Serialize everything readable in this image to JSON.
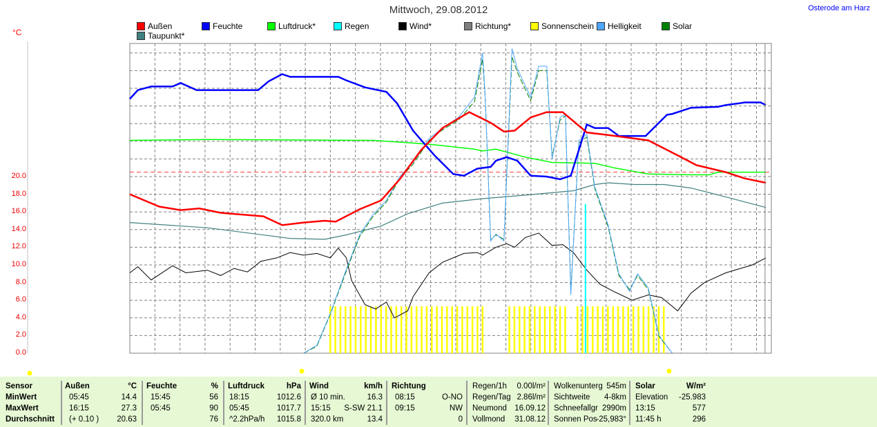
{
  "title": "Mittwoch, 29.08.2012",
  "location": "Osterode am Harz",
  "unit": "°C",
  "legend": [
    {
      "label": "Außen",
      "color": "#ff0000"
    },
    {
      "label": "Feuchte",
      "color": "#0000ff"
    },
    {
      "label": "Luftdruck*",
      "color": "#00ff00"
    },
    {
      "label": "Regen",
      "color": "#00ffff"
    },
    {
      "label": "Wind*",
      "color": "#000000"
    },
    {
      "label": "Richtung*",
      "color": "#808080"
    },
    {
      "label": "Sonnenschein",
      "color": "#ffff00"
    },
    {
      "label": "Helligkeit",
      "color": "#4da6ff"
    },
    {
      "label": "Solar",
      "color": "#008000"
    },
    {
      "label": "Taupunkt*",
      "color": "#408080"
    }
  ],
  "chart_data": {
    "type": "line",
    "title": "Mittwoch, 29.08.2012",
    "ylabel": "°C",
    "xlim": [
      0,
      24
    ],
    "ylim": [
      0,
      35
    ],
    "yticks": [
      "0.0",
      "2.0",
      "4.0",
      "6.0",
      "8.0",
      "10.0",
      "12.0",
      "14.0",
      "16.0",
      "18.0",
      "20.0"
    ],
    "reference_line": 20.5,
    "current_time": 23.77,
    "rain_spike": {
      "x": 17.05,
      "y": 16.9
    },
    "sunshine_ranges": [
      [
        7.5,
        13.3
      ],
      [
        14.2,
        16.3
      ],
      [
        16.75,
        20.1
      ]
    ],
    "series": [
      {
        "name": "Außen",
        "color": "#ff0000",
        "width": 2.5,
        "x": [
          0,
          1.1,
          1.9,
          2.6,
          3.4,
          5,
          5.7,
          6.5,
          7.3,
          7.7,
          8.6,
          9.4,
          10.1,
          10.9,
          11.7,
          12.7,
          13.5,
          14,
          14.4,
          15,
          15.6,
          16.2,
          17.1,
          17.9,
          19.4,
          20.5,
          21.2,
          22.3,
          23,
          23.8
        ],
        "y": [
          18,
          16.6,
          16.2,
          16.4,
          15.9,
          15.5,
          14.5,
          14.8,
          15,
          14.9,
          16.3,
          17.3,
          19.7,
          23,
          25.5,
          27.3,
          26.1,
          25.1,
          25.2,
          26.7,
          27.3,
          27.3,
          25,
          24.7,
          24.1,
          22.4,
          21.3,
          20.5,
          19.8,
          19.3
        ]
      },
      {
        "name": "Feuchte",
        "color": "#0000ff",
        "width": 2.5,
        "x": [
          0,
          0.3,
          0.8,
          1.6,
          1.9,
          2.5,
          4.8,
          5.2,
          5.7,
          6,
          7.8,
          8.1,
          8.8,
          9.6,
          10,
          10.6,
          11.4,
          12.1,
          12.5,
          13,
          13.5,
          13.7,
          14.1,
          14.5,
          15,
          15.6,
          16.1,
          16.5,
          17.1,
          17.4,
          17.9,
          18.3,
          19.3,
          20.1,
          20.3,
          21,
          22,
          22.3,
          22.8,
          23,
          23.6,
          23.8
        ],
        "y": [
          28.8,
          29.8,
          30.2,
          30.2,
          30.6,
          29.8,
          29.8,
          30.8,
          31.6,
          31.3,
          31.3,
          30.9,
          30.1,
          29.6,
          28.3,
          25.2,
          22.4,
          20.3,
          20.1,
          20.9,
          21.1,
          21.8,
          22.2,
          21.8,
          20.1,
          20,
          19.7,
          20.1,
          25.9,
          25.5,
          25.5,
          24.6,
          24.6,
          27,
          27.1,
          27.8,
          27.9,
          28.1,
          28.3,
          28.4,
          28.4,
          28.1
        ]
      },
      {
        "name": "Luftdruck*",
        "color": "#00ff00",
        "width": 1.5,
        "x": [
          0,
          2.9,
          9.1,
          10.6,
          11.4,
          12.9,
          13.2,
          13.7,
          14.8,
          15.8,
          17.4,
          18.1,
          19.4,
          21,
          21.7,
          22,
          23.8
        ],
        "y": [
          24.1,
          24.2,
          24.1,
          23.8,
          23.6,
          23.1,
          22.9,
          23.1,
          22.2,
          21.6,
          21.5,
          21,
          20.3,
          20.2,
          20.2,
          20.5,
          20.5
        ]
      },
      {
        "name": "Taupunkt*",
        "color": "#408080",
        "width": 1.2,
        "x": [
          0,
          2.9,
          6,
          7.3,
          8.1,
          9.4,
          10.4,
          11.7,
          13.2,
          14.8,
          16.6,
          17.4,
          17.9,
          18.9,
          20,
          21,
          22.3,
          23.8
        ],
        "y": [
          14.8,
          14.2,
          13,
          12.9,
          13.4,
          14.4,
          15.8,
          17,
          17.5,
          17.9,
          18.4,
          19.1,
          19.3,
          19.1,
          19.1,
          18.7,
          17.7,
          16.5
        ]
      },
      {
        "name": "Wind*",
        "color": "#000000",
        "width": 1,
        "x": [
          0,
          0.3,
          0.8,
          1.6,
          2.1,
          2.9,
          3.4,
          3.9,
          4.4,
          4.9,
          5.5,
          6,
          6.5,
          7,
          7.5,
          7.8,
          8.1,
          8.3,
          8.8,
          9.2,
          9.6,
          9.9,
          10.4,
          10.6,
          11.2,
          11.7,
          12.5,
          13,
          13.2,
          13.7,
          14.1,
          14.4,
          14.8,
          15.3,
          15.8,
          16.2,
          16.6,
          17.1,
          17.6,
          18.1,
          18.8,
          19.4,
          19.9,
          20.5,
          21,
          21.5,
          22.3,
          23.3,
          23.8
        ],
        "y": [
          9.1,
          9.8,
          8.3,
          9.9,
          9.1,
          9.4,
          8.8,
          9.6,
          9.2,
          10.4,
          10.8,
          11.4,
          11.1,
          11.3,
          10.8,
          11.9,
          10.8,
          8.2,
          5.5,
          5,
          5.8,
          4,
          4.8,
          6.4,
          9.1,
          10.3,
          11.3,
          11.4,
          11.1,
          12,
          12.4,
          12,
          13.1,
          13.6,
          12.2,
          12.3,
          11.4,
          9.4,
          7.8,
          7,
          6,
          6.6,
          6.3,
          4.8,
          6.8,
          8,
          9.1,
          10,
          10.8
        ]
      },
      {
        "name": "Helligkeit",
        "color": "#4da6ff",
        "width": 1,
        "x": [
          6.5,
          7,
          7.5,
          8.1,
          8.6,
          9.1,
          9.6,
          10.1,
          10.6,
          11.2,
          11.7,
          12.3,
          12.9,
          13.2,
          13.3,
          13.5,
          13.7,
          14,
          14.3,
          14.5,
          15,
          15.3,
          15.6,
          15.8,
          16.1,
          16.3,
          16.5,
          16.8,
          17.1,
          17.4,
          17.9,
          18.3,
          18.7,
          19,
          19.4,
          19.8,
          20.3
        ],
        "y": [
          0,
          0.9,
          4.5,
          9.5,
          13.4,
          15.7,
          17.3,
          20,
          21.6,
          24.3,
          25.5,
          26.7,
          29,
          34,
          29,
          12.7,
          13.5,
          12.7,
          34.5,
          32.2,
          29,
          32.5,
          32.5,
          22,
          26.7,
          27.1,
          6.6,
          24.1,
          24.8,
          18.8,
          14.5,
          9,
          7,
          9,
          7.4,
          2,
          0
        ]
      },
      {
        "name": "Solar",
        "color": "#008000",
        "width": 1,
        "x": [
          6.5,
          7,
          7.5,
          8.1,
          8.6,
          9.1,
          9.6,
          10.1,
          10.6,
          11.2,
          11.7,
          12.3,
          12.9,
          13.2,
          13.3,
          13.5,
          13.7,
          14,
          14.3,
          14.5,
          15,
          15.3,
          15.6,
          15.8,
          16.1,
          16.3,
          16.5,
          16.8,
          17.1,
          17.4,
          17.9,
          18.3,
          18.7,
          19,
          19.4,
          19.8,
          20.3
        ],
        "y": [
          0,
          0.8,
          4.4,
          9.3,
          13.2,
          15.5,
          17.1,
          19.8,
          21.4,
          24.1,
          25.3,
          26.4,
          28.5,
          33.3,
          28.8,
          12.9,
          13.4,
          12.9,
          33.6,
          31.8,
          28.6,
          32,
          32,
          22.3,
          26.4,
          26.9,
          7,
          23.8,
          24.5,
          18.6,
          14.3,
          8.8,
          7.2,
          8.8,
          7.2,
          1.9,
          0
        ]
      }
    ]
  },
  "table": {
    "headers": {
      "sensor": "Sensor",
      "aussen": "Außen",
      "aussen_unit": "°C",
      "feuchte": "Feuchte",
      "feuchte_unit": "%",
      "luftdruck": "Luftdruck",
      "luftdruck_unit": "hPa",
      "wind": "Wind",
      "wind_unit": "km/h",
      "richtung": "Richtung",
      "solar": "Solar",
      "solar_unit": "W/m²"
    },
    "rows": [
      {
        "label": "MinWert",
        "a_t": "05:45",
        "a_v": "14.4",
        "f_t": "15:45",
        "f_v": "56",
        "l_t": "18:15",
        "l_v": "1012.6",
        "w_t": "Ø 10 min.",
        "w_v": "16.3",
        "r_t": "08:15",
        "r_v": "O-NO"
      },
      {
        "label": "MaxWert",
        "a_t": "16:15",
        "a_v": "27.3",
        "f_t": "05:45",
        "f_v": "90",
        "l_t": "05:45",
        "l_v": "1017.7",
        "w_t": "15:15",
        "w_v": "S-SW 21.1",
        "r_t": "09:15",
        "r_v": "NW"
      },
      {
        "label": "Durchschnitt",
        "a_t": "(+ 0.10 )",
        "a_v": "20.63",
        "f_t": "",
        "f_v": "76",
        "l_t": "^2.2hPa/h",
        "l_v": "1015.8",
        "w_t": "320.0 km",
        "w_v": "13.4",
        "r_t": "",
        "r_v": "0"
      }
    ],
    "misc1": [
      [
        "Regen/1h",
        "0.00l/m²"
      ],
      [
        "Regen/Tag",
        "2.86l/m²"
      ],
      [
        "Neumond",
        "16.09.12"
      ],
      [
        "Vollmond",
        "31.08.12"
      ]
    ],
    "misc2": [
      [
        "Wolkenunterg",
        "545m"
      ],
      [
        "Sichtweite",
        "4-8km"
      ],
      [
        "Schneefallgr",
        "2990m"
      ],
      [
        "Sonnen Pos",
        "-25,983°"
      ]
    ],
    "solar_rows": [
      [
        "Elevation",
        "-25.983"
      ],
      [
        "13:15",
        "577"
      ],
      [
        "11:45 h",
        "296"
      ]
    ]
  }
}
